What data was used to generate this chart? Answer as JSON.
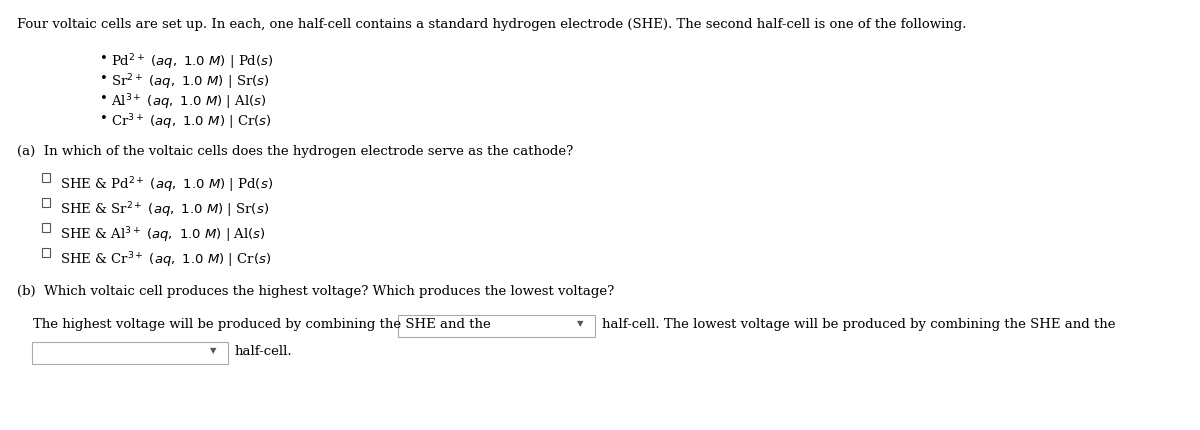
{
  "bg_color": "#ffffff",
  "text_color": "#000000",
  "intro_text": "Four voltaic cells are set up. In each, one half-cell contains a standard hydrogen electrode (SHE). The second half-cell is one of the following.",
  "bullet_items": [
    [
      "Pd$^{2+}$",
      "$(aq,\\ 1.0\\ M)$ | Pd$(s)$"
    ],
    [
      "Sr$^{2+}$",
      "$(aq,\\ 1.0\\ M)$ | Sr$(s)$"
    ],
    [
      "Al$^{3+}$",
      "$(aq,\\ 1.0\\ M)$ | Al$(s)$"
    ],
    [
      "Cr$^{3+}$",
      "$(aq,\\ 1.0\\ M)$ | Cr$(s)$"
    ]
  ],
  "part_a_label": "(a)",
  "part_a_text": "In which of the voltaic cells does the hydrogen electrode serve as the cathode?",
  "radio_items": [
    [
      "SHE & Pd$^{2+}$",
      "$(aq,\\ 1.0\\ M)$ | Pd$(s)$"
    ],
    [
      "SHE & Sr$^{2+}$",
      "$(aq,\\ 1.0\\ M)$ | Sr$(s)$"
    ],
    [
      "SHE & Al$^{3+}$",
      "$(aq,\\ 1.0\\ M)$ | Al$(s)$"
    ],
    [
      "SHE & Cr$^{3+}$",
      "$(aq,\\ 1.0\\ M)$ | Cr$(s)$"
    ]
  ],
  "part_b_label": "(b)",
  "part_b_text": "Which voltaic cell produces the highest voltage? Which produces the lowest voltage?",
  "highest_text_before": "The highest voltage will be produced by combining the SHE and the",
  "highest_text_after": "half-cell. The lowest voltage will be produced by combining the SHE and the",
  "lowest_text_after": "half-cell.",
  "dropdown_color": "#ffffff",
  "dropdown_border": "#aaaaaa",
  "font_size_intro": 9.5,
  "font_size_body": 9.5,
  "font_size_label": 9.5
}
